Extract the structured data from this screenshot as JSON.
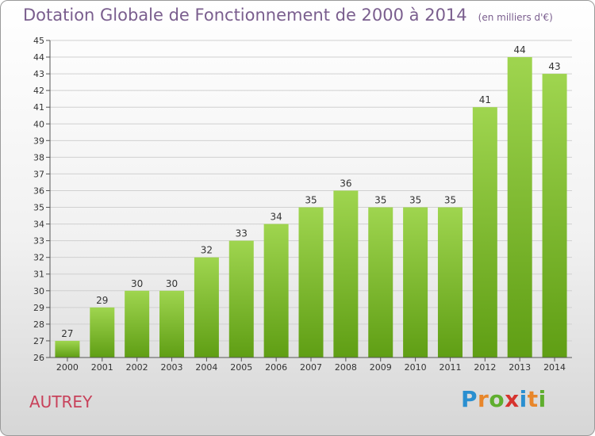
{
  "title": "Dotation Globale de Fonctionnement de 2000 à 2014",
  "unit_label": "(en milliers d'€)",
  "commune": "AUTREY",
  "logo": {
    "text": "Proxiti",
    "letters": [
      {
        "ch": "P",
        "color": "#2a8fd0"
      },
      {
        "ch": "r",
        "color": "#e8862a"
      },
      {
        "ch": "o",
        "color": "#5fae2e"
      },
      {
        "ch": "x",
        "color": "#d6332e"
      },
      {
        "ch": "i",
        "color": "#2a8fd0"
      },
      {
        "ch": "t",
        "color": "#e8862a"
      },
      {
        "ch": "i",
        "color": "#5fae2e"
      }
    ]
  },
  "colors": {
    "title": "#7a5e8e",
    "bar_top": "#9fd54f",
    "bar_bottom": "#5f9e14",
    "commune": "#c8415a"
  },
  "chart_data": {
    "type": "bar",
    "title": "Dotation Globale de Fonctionnement de 2000 à 2014",
    "subtitle": "(en milliers d'€)",
    "xlabel": "",
    "ylabel": "",
    "categories": [
      "2000",
      "2001",
      "2002",
      "2003",
      "2004",
      "2005",
      "2006",
      "2007",
      "2008",
      "2009",
      "2010",
      "2011",
      "2012",
      "2013",
      "2014"
    ],
    "values": [
      27,
      29,
      30,
      30,
      32,
      33,
      34,
      35,
      36,
      35,
      35,
      35,
      41,
      44,
      43
    ],
    "ylim": [
      26,
      45
    ],
    "yticks": [
      26,
      27,
      28,
      29,
      30,
      31,
      32,
      33,
      34,
      35,
      36,
      37,
      38,
      39,
      40,
      41,
      42,
      43,
      44,
      45
    ],
    "grid": true,
    "legend": "none"
  }
}
